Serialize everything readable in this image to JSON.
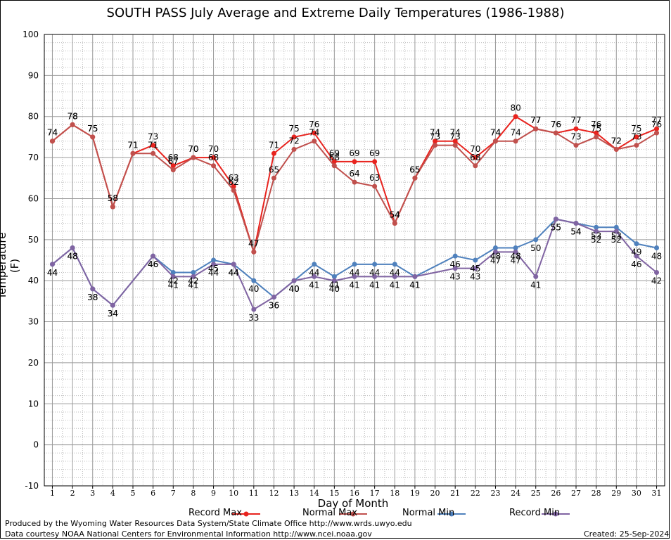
{
  "chart_data": {
    "type": "line",
    "title": "SOUTH PASS July Average and Extreme Daily Temperatures (1986-1988)",
    "xlabel": "Day of Month",
    "ylabel": "Temperature (F)",
    "ylim": [
      -10,
      100
    ],
    "xlim": [
      0.6,
      31.4
    ],
    "y_ticks": [
      "-10",
      "0",
      "10",
      "20",
      "30",
      "40",
      "50",
      "60",
      "70",
      "80",
      "90",
      "100"
    ],
    "x_ticks": [
      "1",
      "2",
      "3",
      "4",
      "5",
      "6",
      "7",
      "8",
      "9",
      "10",
      "11",
      "12",
      "13",
      "14",
      "15",
      "16",
      "17",
      "18",
      "19",
      "20",
      "21",
      "22",
      "23",
      "24",
      "25",
      "26",
      "27",
      "28",
      "29",
      "30",
      "31"
    ],
    "grid": true,
    "legend": "bottom",
    "series": [
      {
        "name": "Record Max",
        "color": "#e8231e",
        "x": [
          1,
          2,
          3,
          4,
          5,
          6,
          7,
          8,
          9,
          10,
          11,
          12,
          13,
          14,
          15,
          16,
          17,
          18,
          19,
          20,
          21,
          22,
          23,
          24,
          25,
          26,
          27,
          28,
          29,
          30,
          31
        ],
        "values": [
          74,
          78,
          75,
          58,
          71,
          73,
          68,
          70,
          70,
          63,
          47,
          71,
          75,
          76,
          69,
          69,
          69,
          54,
          65,
          74,
          74,
          70,
          74,
          80,
          77,
          76,
          77,
          76,
          72,
          75,
          77
        ]
      },
      {
        "name": "Normal Max",
        "color": "#c0504d",
        "x": [
          1,
          2,
          3,
          4,
          5,
          6,
          7,
          8,
          9,
          10,
          11,
          12,
          13,
          14,
          15,
          16,
          17,
          18,
          19,
          20,
          21,
          22,
          23,
          24,
          25,
          26,
          27,
          28,
          29,
          30,
          31
        ],
        "values": [
          74,
          78,
          75,
          58,
          71,
          71,
          67,
          70,
          68,
          62,
          47,
          65,
          72,
          74,
          68,
          64,
          63,
          54,
          65,
          73,
          73,
          68,
          74,
          74,
          77,
          76,
          73,
          75,
          72,
          73,
          76
        ]
      },
      {
        "name": "Normal Min",
        "color": "#4f81bd",
        "x": [
          1,
          2,
          3,
          4,
          6,
          7,
          8,
          9,
          10,
          11,
          12,
          13,
          14,
          15,
          16,
          17,
          18,
          19,
          21,
          22,
          23,
          24,
          25,
          26,
          27,
          28,
          29,
          30,
          31
        ],
        "values": [
          44,
          48,
          38,
          34,
          46,
          42,
          42,
          45,
          44,
          40,
          36,
          40,
          44,
          41,
          44,
          44,
          44,
          41,
          46,
          45,
          48,
          48,
          50,
          55,
          54,
          53,
          53,
          49,
          48
        ]
      },
      {
        "name": "Record Min",
        "color": "#8064a2",
        "x": [
          1,
          2,
          3,
          4,
          6,
          7,
          8,
          9,
          10,
          11,
          12,
          13,
          14,
          15,
          16,
          17,
          18,
          19,
          21,
          22,
          23,
          24,
          25,
          26,
          27,
          28,
          29,
          30,
          31
        ],
        "values": [
          44,
          48,
          38,
          34,
          46,
          41,
          41,
          44,
          44,
          33,
          36,
          40,
          41,
          40,
          41,
          41,
          41,
          41,
          43,
          43,
          47,
          47,
          41,
          55,
          54,
          52,
          52,
          46,
          42
        ]
      }
    ]
  },
  "footer": {
    "produced": "Produced by the Wyoming Water Resources Data System/State Climate Office http://www.wrds.uwyo.edu",
    "courtesy": "Data courtesy NOAA National Centers for Environmental Information http://www.ncei.noaa.gov",
    "created": "Created:  25-Sep-2024"
  }
}
